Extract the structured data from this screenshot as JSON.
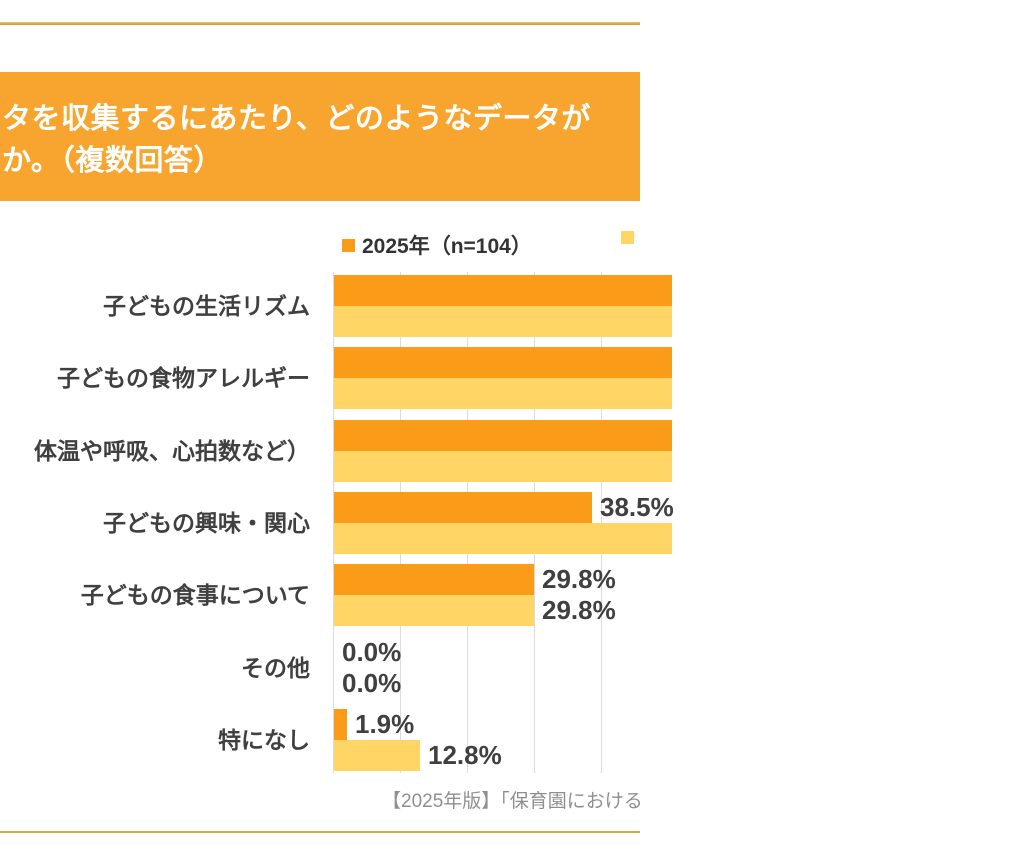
{
  "header": {
    "title_line1": "タを収集するにあたり、どのようなデータが",
    "title_line2": "か。（複数回答）",
    "band_color": "#f7a52f"
  },
  "legend": {
    "items": [
      {
        "label": "2025年（n=104）",
        "color": "#fa9c18"
      },
      {
        "label": "",
        "color": "#ffd666"
      }
    ]
  },
  "chart_data": {
    "type": "bar",
    "orientation": "horizontal",
    "categories": [
      "子どもの生活リズム",
      "子どもの食物アレルギー",
      "体温や呼吸、心拍数など）",
      "子どもの興味・関心",
      "子どもの食事について",
      "その他",
      "特になし"
    ],
    "series": [
      {
        "name": "2025年（n=104）",
        "color": "#fa9c18",
        "values": [
          null,
          null,
          null,
          38.5,
          29.8,
          0.0,
          1.9
        ],
        "value_labels": [
          "",
          "",
          "",
          "38.5%",
          "29.8%",
          "0.0%",
          "1.9%"
        ],
        "clipped": [
          true,
          true,
          true,
          false,
          false,
          false,
          false
        ]
      },
      {
        "name": "",
        "color": "#ffd666",
        "values": [
          null,
          null,
          null,
          null,
          29.8,
          0.0,
          12.8
        ],
        "value_labels": [
          "",
          "",
          "",
          "",
          "29.8%",
          "0.0%",
          "12.8%"
        ],
        "clipped": [
          true,
          true,
          true,
          true,
          false,
          false,
          false
        ]
      }
    ],
    "x_axis": {
      "unit": "%",
      "gridline_interval": 10,
      "visible_range": [
        0,
        46
      ],
      "gridlines_visible": true
    },
    "legend_position": "top",
    "notes": "Image is cropped at left and right edges; bars flagged clipped run past the right edge so their values are not shown."
  },
  "footer": {
    "source_text": "【2025年版】「保育園における"
  },
  "colors": {
    "bar_orange": "#fa9c18",
    "bar_yellow": "#ffd666",
    "band_orange": "#f7a52f",
    "rule_gold": "#d9a63e",
    "gridline": "#dcdcdc",
    "text_dark": "#404040",
    "text_gray": "#8f8f8f"
  }
}
